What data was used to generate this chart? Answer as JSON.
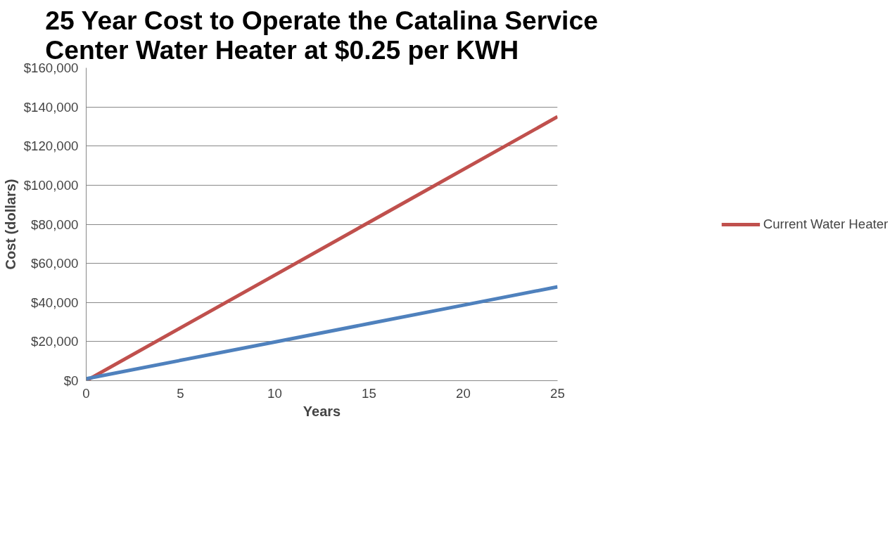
{
  "chart_data": {
    "type": "line",
    "title": "25 Year Cost to Operate the Catalina Service\nCenter Water Heater  at $0.25 per KWH",
    "xlabel": "Years",
    "ylabel": "Cost (dollars)",
    "x": [
      0,
      5,
      10,
      15,
      20,
      25
    ],
    "series": [
      {
        "name": "Current Water Heater",
        "color": "#c0504d",
        "values": [
          0,
          27000,
          54000,
          81000,
          108000,
          135000
        ]
      },
      {
        "color": "#4f81bd",
        "values": [
          1000,
          10400,
          19800,
          29200,
          38600,
          48000
        ]
      }
    ],
    "xlim": [
      0,
      25
    ],
    "xticks": [
      0,
      5,
      10,
      15,
      20,
      25
    ],
    "ylim": [
      0,
      160000
    ],
    "yticks": [
      {
        "value": 0,
        "label": "$0"
      },
      {
        "value": 20000,
        "label": "$20,000"
      },
      {
        "value": 40000,
        "label": "$40,000"
      },
      {
        "value": 60000,
        "label": "$60,000"
      },
      {
        "value": 80000,
        "label": "$80,000"
      },
      {
        "value": 100000,
        "label": "$100,000"
      },
      {
        "value": 120000,
        "label": "$120,000"
      },
      {
        "value": 140000,
        "label": "$140,000"
      },
      {
        "value": 160000,
        "label": "$160,000"
      }
    ],
    "grid": "y",
    "legend": "right",
    "marker": "none",
    "line_style": "solid"
  }
}
